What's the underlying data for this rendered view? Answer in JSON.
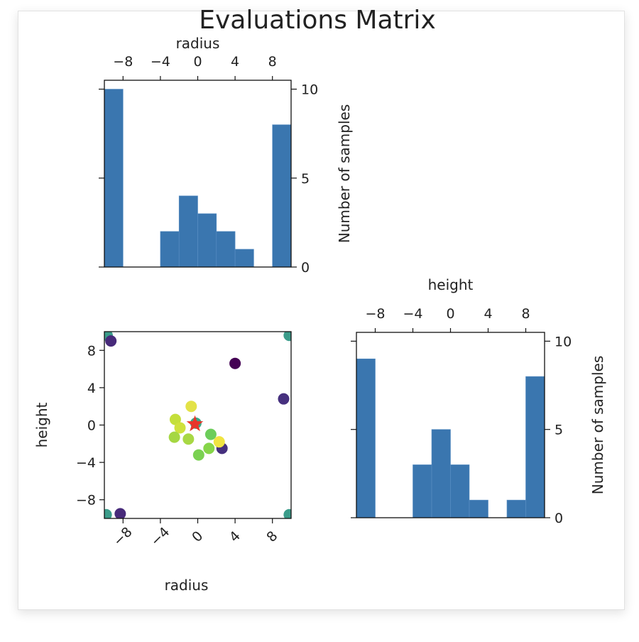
{
  "chart_data": [
    {
      "type": "bar",
      "title": "Evaluations Matrix",
      "xlabel": "radius",
      "ylabel": "Number of samples",
      "bin_edges": [
        -10,
        -8,
        -6,
        -4,
        -2,
        0,
        2,
        4,
        6,
        8,
        10
      ],
      "values": [
        10,
        0,
        0,
        2,
        4,
        3,
        2,
        1,
        0,
        8
      ],
      "xlim": [
        -10,
        10
      ],
      "ylim": [
        0,
        10.5
      ],
      "xticks": [
        -8,
        -4,
        0,
        4,
        8
      ],
      "xtick_labels": [
        "−8",
        "−4",
        "0",
        "4",
        "8"
      ],
      "yticks": [
        0,
        5,
        10
      ],
      "ytick_labels": [
        "0",
        "5",
        "10"
      ],
      "xaxis_position": "top",
      "yaxis_position": "right",
      "color": "#3a76af",
      "grid": false
    },
    {
      "type": "scatter",
      "xlabel": "radius",
      "ylabel": "height",
      "xlim": [
        -10,
        10
      ],
      "ylim": [
        -10,
        10
      ],
      "xticks": [
        -8,
        -4,
        0,
        4,
        8
      ],
      "xtick_labels": [
        "−8",
        "−4",
        "0",
        "4",
        "8"
      ],
      "yticks": [
        8,
        4,
        0,
        -4,
        -8
      ],
      "ytick_labels": [
        "8",
        "4",
        "0",
        "−4",
        "−8"
      ],
      "colormap": "viridis",
      "grid": false,
      "points": [
        {
          "x": -9.7,
          "y": 9.6,
          "color": "#3b9c8a"
        },
        {
          "x": -9.3,
          "y": 9.0,
          "color": "#472a7a"
        },
        {
          "x": 9.8,
          "y": 9.6,
          "color": "#3b9c8a"
        },
        {
          "x": 4.0,
          "y": 6.6,
          "color": "#440154"
        },
        {
          "x": 9.2,
          "y": 2.8,
          "color": "#46307e"
        },
        {
          "x": -0.7,
          "y": 2.0,
          "color": "#e3e247"
        },
        {
          "x": -2.4,
          "y": 0.6,
          "color": "#c4df3a"
        },
        {
          "x": -0.2,
          "y": 0.2,
          "color": "#38a988"
        },
        {
          "x": -1.9,
          "y": -0.3,
          "color": "#cfe13c"
        },
        {
          "x": -2.5,
          "y": -1.3,
          "color": "#a5d742"
        },
        {
          "x": -1.0,
          "y": -1.5,
          "color": "#a8d844"
        },
        {
          "x": 1.4,
          "y": -1.0,
          "color": "#6ccd5a"
        },
        {
          "x": 2.6,
          "y": -2.5,
          "color": "#46307e"
        },
        {
          "x": 2.3,
          "y": -1.8,
          "color": "#f0e442"
        },
        {
          "x": 1.2,
          "y": -2.5,
          "color": "#86d549"
        },
        {
          "x": 0.1,
          "y": -3.2,
          "color": "#7ad151"
        },
        {
          "x": -9.8,
          "y": -9.6,
          "color": "#3b9c8a"
        },
        {
          "x": -8.3,
          "y": -9.5,
          "color": "#472a7a"
        },
        {
          "x": 9.8,
          "y": -9.6,
          "color": "#3b9c8a"
        }
      ],
      "best_point": {
        "x": -0.3,
        "y": 0.1,
        "marker": "star",
        "color": "#e8352a"
      }
    },
    {
      "type": "bar",
      "xlabel": "height",
      "ylabel": "Number of samples",
      "bin_edges": [
        -10,
        -8,
        -6,
        -4,
        -2,
        0,
        2,
        4,
        6,
        8,
        10
      ],
      "values": [
        9,
        0,
        0,
        3,
        5,
        3,
        1,
        0,
        1,
        8
      ],
      "xlim": [
        -10,
        10
      ],
      "ylim": [
        0,
        10.5
      ],
      "xticks": [
        -8,
        -4,
        0,
        4,
        8
      ],
      "xtick_labels": [
        "−8",
        "−4",
        "0",
        "4",
        "8"
      ],
      "yticks": [
        0,
        5,
        10
      ],
      "ytick_labels": [
        "0",
        "5",
        "10"
      ],
      "xaxis_position": "top",
      "yaxis_position": "right",
      "color": "#3a76af",
      "grid": false
    }
  ]
}
